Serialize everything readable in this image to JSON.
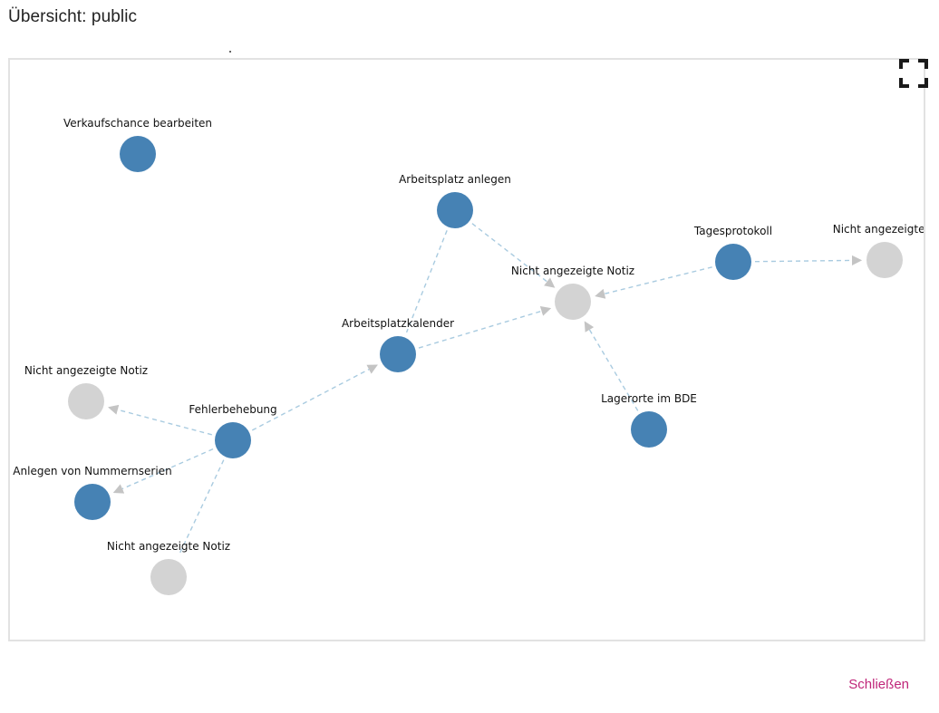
{
  "dialog": {
    "title": "Übersicht: public",
    "close_label": "Schließen"
  },
  "colors": {
    "visible_node": "#4682b4",
    "hidden_node": "#d3d3d3",
    "edge": "#a9cbe0",
    "close_link": "#c0267a"
  },
  "graph": {
    "nodes": [
      {
        "id": "n1",
        "label": "Verkaufschance bearbeiten",
        "kind": "visible"
      },
      {
        "id": "n2",
        "label": "Arbeitsplatz anlegen",
        "kind": "visible"
      },
      {
        "id": "n3",
        "label": "Tagesprotokoll",
        "kind": "visible"
      },
      {
        "id": "n4",
        "label": "Nicht angezeigte N",
        "kind": "hidden"
      },
      {
        "id": "n5",
        "label": "Nicht angezeigte Notiz",
        "kind": "hidden"
      },
      {
        "id": "n6",
        "label": "Arbeitsplatzkalender",
        "kind": "visible"
      },
      {
        "id": "n7",
        "label": "Nicht angezeigte Notiz",
        "kind": "hidden"
      },
      {
        "id": "n8",
        "label": "Fehlerbehebung",
        "kind": "visible"
      },
      {
        "id": "n9",
        "label": "Lagerorte im BDE",
        "kind": "visible"
      },
      {
        "id": "n10",
        "label": "Anlegen von Nummernserien",
        "kind": "visible"
      },
      {
        "id": "n11",
        "label": "Nicht angezeigte Notiz",
        "kind": "hidden"
      }
    ],
    "edges": [
      {
        "from": "n2",
        "to": "n5",
        "arrow": true
      },
      {
        "from": "n2",
        "to": "n6",
        "arrow": false
      },
      {
        "from": "n3",
        "to": "n5",
        "arrow": true
      },
      {
        "from": "n3",
        "to": "n4",
        "arrow": true
      },
      {
        "from": "n6",
        "to": "n5",
        "arrow": true
      },
      {
        "from": "n9",
        "to": "n5",
        "arrow": true
      },
      {
        "from": "n8",
        "to": "n6",
        "arrow": true
      },
      {
        "from": "n8",
        "to": "n7",
        "arrow": true
      },
      {
        "from": "n8",
        "to": "n10",
        "arrow": true
      },
      {
        "from": "n8",
        "to": "n11",
        "arrow": false
      }
    ]
  },
  "icons": {
    "fullscreen": "fullscreen-icon"
  }
}
